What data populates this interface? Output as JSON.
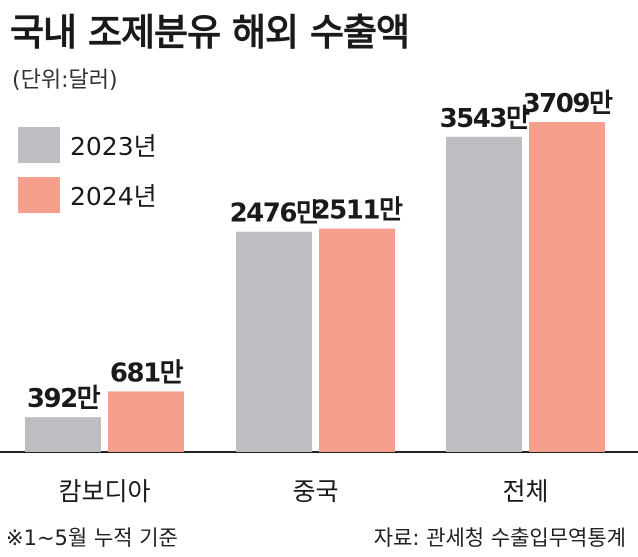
{
  "chart_data": {
    "type": "bar",
    "title": "국내 조제분유 해외 수출액",
    "unit_label": "(단위:달러)",
    "categories": [
      "캄보디아",
      "중국",
      "전체"
    ],
    "series": [
      {
        "name": "2023년",
        "color": "#bdbec2",
        "values": [
          392,
          2476,
          3543
        ],
        "labels": [
          "392만",
          "2476만",
          "3543만"
        ]
      },
      {
        "name": "2024년",
        "color": "#f4a08c",
        "values": [
          681,
          2511,
          3709
        ],
        "labels": [
          "681만",
          "2511만",
          "3709만"
        ]
      }
    ],
    "value_unit": "만 달러",
    "legend_position": "top-left",
    "grid": false,
    "ylim": [
      0,
      3709
    ]
  },
  "footnote": "※1~5월 누적 기준",
  "source": "자료: 관세청 수출입무역통계"
}
